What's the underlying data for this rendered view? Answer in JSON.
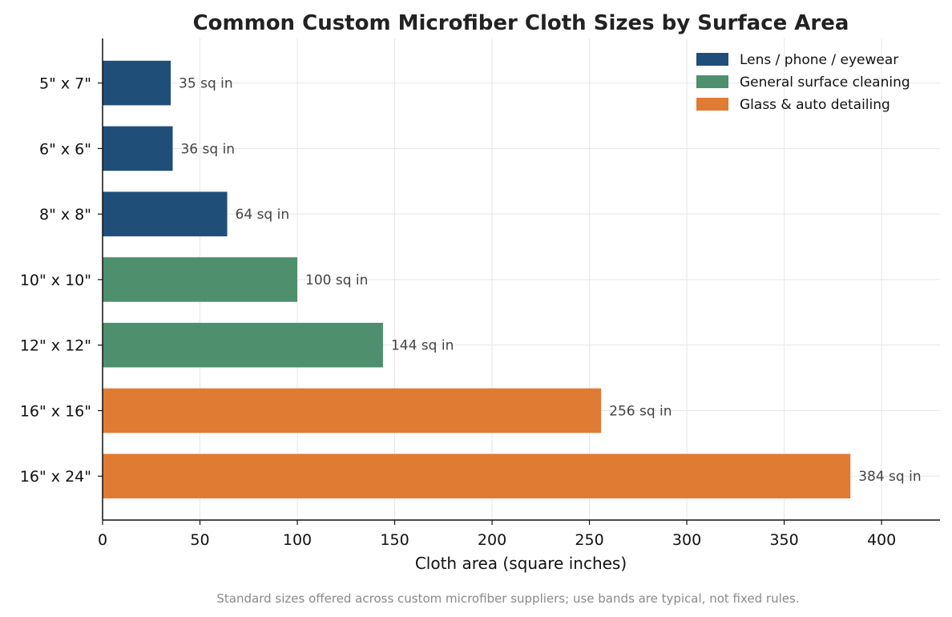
{
  "chart_data": {
    "type": "bar",
    "orientation": "horizontal",
    "title": "Common Custom Microfiber Cloth Sizes by Surface Area",
    "xlabel": "Cloth area (square inches)",
    "ylabel": "",
    "xlim": [
      0,
      430
    ],
    "xticks": [
      0,
      50,
      100,
      150,
      200,
      250,
      300,
      350,
      400
    ],
    "grid": true,
    "legend_position": "top-right",
    "categories": [
      "5\" x 7\"",
      "6\" x 6\"",
      "8\" x 8\"",
      "10\" x 10\"",
      "12\" x 12\"",
      "16\" x 16\"",
      "16\" x 24\""
    ],
    "values": [
      35,
      36,
      64,
      100,
      144,
      256,
      384
    ],
    "data_labels": [
      "35 sq in",
      "36 sq in",
      "64 sq in",
      "100 sq in",
      "144 sq in",
      "256 sq in",
      "384 sq in"
    ],
    "bar_groups": [
      0,
      0,
      0,
      1,
      1,
      2,
      2
    ],
    "groups": [
      {
        "name": "Lens / phone / eyewear",
        "color": "#1f4e79"
      },
      {
        "name": "General surface cleaning",
        "color": "#4e8f6e"
      },
      {
        "name": "Glass & auto detailing",
        "color": "#e07b34"
      }
    ],
    "footnote": "Standard sizes offered across custom microfiber suppliers; use bands are typical, not fixed rules."
  }
}
